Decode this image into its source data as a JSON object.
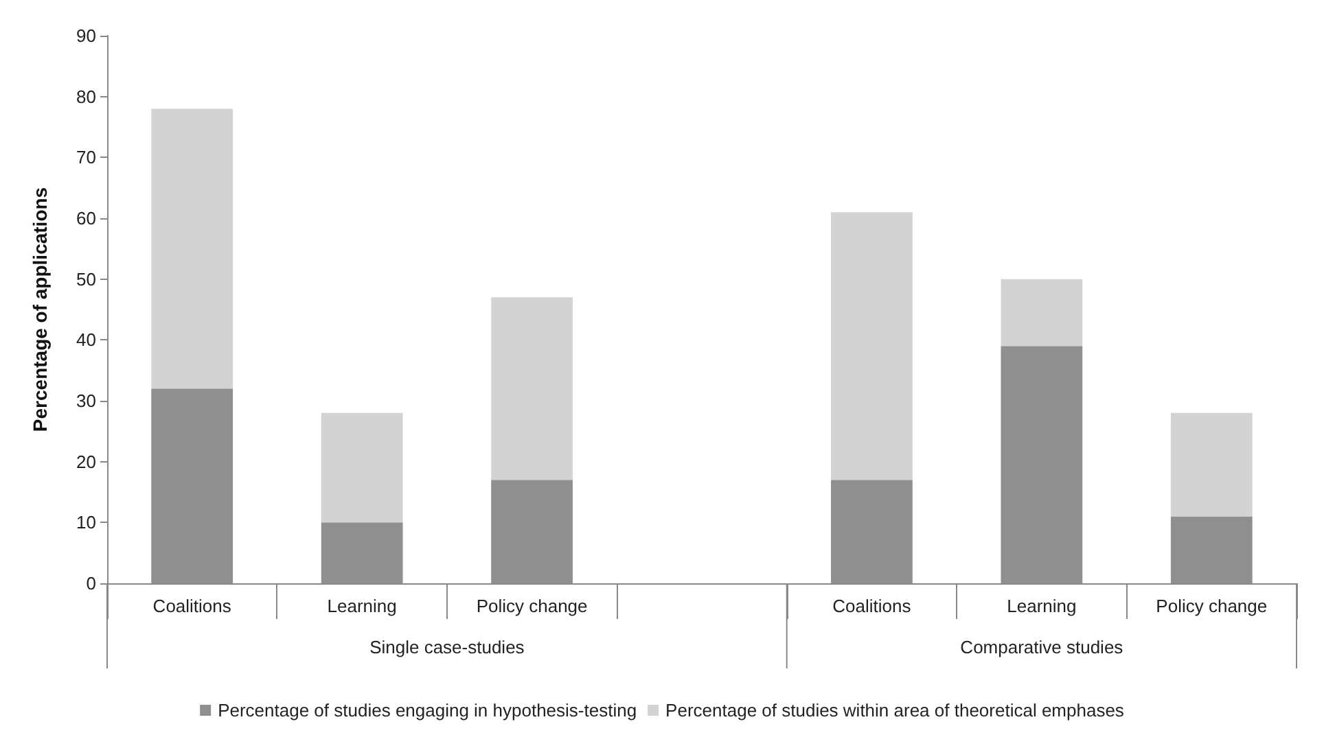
{
  "chart_data": {
    "type": "bar",
    "stacked": true,
    "ylabel": "Percentage of applications",
    "categories": [
      "Coalitions",
      "Learning",
      "Policy change",
      null,
      "Coalitions",
      "Learning",
      "Policy change"
    ],
    "series": [
      {
        "name": "Percentage of studies engaging in hypothesis-testing",
        "color": "#8f8f8f",
        "values": [
          32,
          10,
          17,
          null,
          17,
          39,
          11
        ]
      },
      {
        "name": "Percentage of studies within area of theoretical emphases",
        "color": "#d3d3d3",
        "values": [
          46,
          18,
          30,
          null,
          44,
          11,
          17
        ]
      }
    ],
    "ylim": [
      0,
      90
    ],
    "yticks": [
      0,
      10,
      20,
      30,
      40,
      50,
      60,
      70,
      80,
      90
    ],
    "grid": false,
    "legend": "bottom",
    "annotations": [
      "Single case-studies",
      "Comparative studies"
    ]
  }
}
